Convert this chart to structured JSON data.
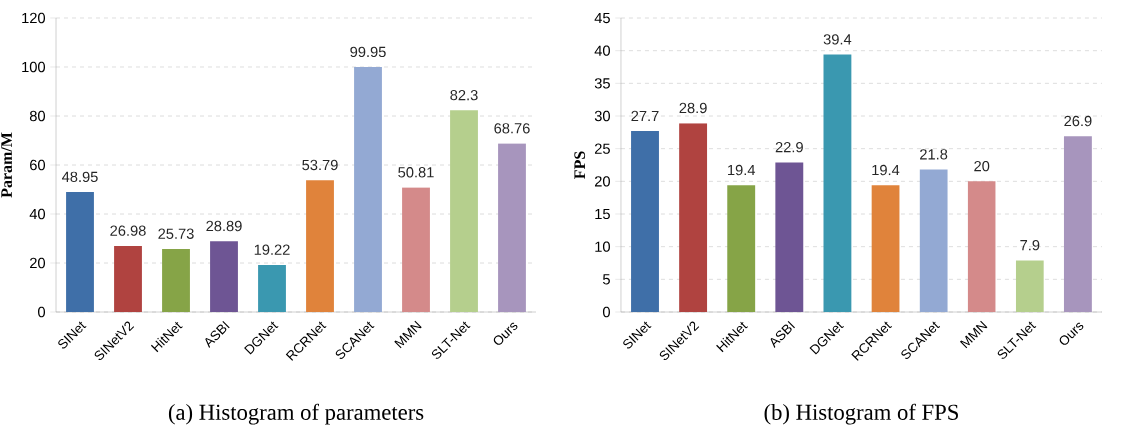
{
  "chart_data": [
    {
      "type": "bar",
      "title": "(a) Histogram of parameters",
      "ylabel": "Param/M",
      "categories": [
        "SINet",
        "SINetV2",
        "HitNet",
        "ASBI",
        "DGNet",
        "RCRNet",
        "SCANet",
        "MMN",
        "SLT-Net",
        "Ours"
      ],
      "values": [
        48.95,
        26.98,
        25.73,
        28.89,
        19.22,
        53.79,
        99.95,
        50.81,
        82.3,
        68.76
      ],
      "colors": [
        "#3f6fa8",
        "#b04340",
        "#86a447",
        "#6e5594",
        "#3a98b0",
        "#e0833b",
        "#93a9d3",
        "#d48a8a",
        "#b5cf8d",
        "#a795bd"
      ],
      "ylim": [
        0,
        120
      ],
      "yticks": [
        0,
        20,
        40,
        60,
        80,
        100,
        120
      ],
      "grid": "y",
      "data_labels": true
    },
    {
      "type": "bar",
      "title": "(b) Histogram of FPS",
      "ylabel": "FPS",
      "categories": [
        "SINet",
        "SINetV2",
        "HitNet",
        "ASBI",
        "DGNet",
        "RCRNet",
        "SCANet",
        "MMN",
        "SLT-Net",
        "Ours"
      ],
      "values": [
        27.7,
        28.9,
        19.4,
        22.9,
        39.4,
        19.4,
        21.8,
        20,
        7.9,
        26.9
      ],
      "colors": [
        "#3f6fa8",
        "#b04340",
        "#86a447",
        "#6e5594",
        "#3a98b0",
        "#e0833b",
        "#93a9d3",
        "#d48a8a",
        "#b5cf8d",
        "#a795bd"
      ],
      "ylim": [
        0,
        45
      ],
      "yticks": [
        0,
        5,
        10,
        15,
        20,
        25,
        30,
        35,
        40,
        45
      ],
      "grid": "y",
      "data_labels": true
    }
  ]
}
